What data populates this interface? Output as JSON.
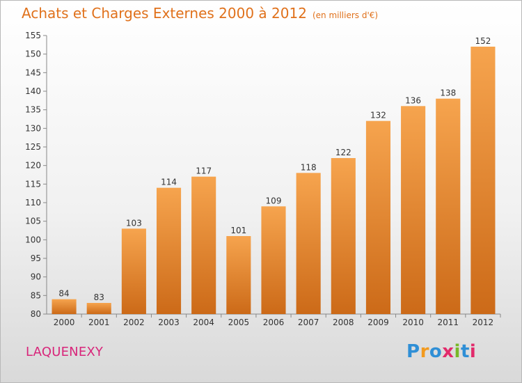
{
  "colors": {
    "title": "#e0711b",
    "place": "#d8257a",
    "bar_top": "#f6a44e",
    "bar_bottom": "#cc6a18",
    "logo_letters": [
      "#2f8fd6",
      "#f29a1e",
      "#2f8fd6",
      "#e22b6b",
      "#79b829",
      "#2f8fd6",
      "#e22b6b"
    ]
  },
  "header": {
    "title": "Achats et Charges Externes 2000 à 2012",
    "subtitle": "(en milliers d'€)"
  },
  "footer": {
    "place": "LAQUENEXY",
    "brand": "Proxiti"
  },
  "chart_data": {
    "type": "bar",
    "title": "Achats et Charges Externes 2000 à 2012",
    "subtitle": "(en milliers d'€)",
    "xlabel": "",
    "ylabel": "",
    "categories": [
      "2000",
      "2001",
      "2002",
      "2003",
      "2004",
      "2005",
      "2006",
      "2007",
      "2008",
      "2009",
      "2010",
      "2011",
      "2012"
    ],
    "values": [
      84,
      83,
      103,
      114,
      117,
      101,
      109,
      118,
      122,
      132,
      136,
      138,
      152
    ],
    "ylim": [
      80,
      155
    ],
    "yticks": [
      80,
      85,
      90,
      95,
      100,
      105,
      110,
      115,
      120,
      125,
      130,
      135,
      140,
      145,
      150,
      155
    ],
    "grid": false,
    "data_labels": true
  }
}
